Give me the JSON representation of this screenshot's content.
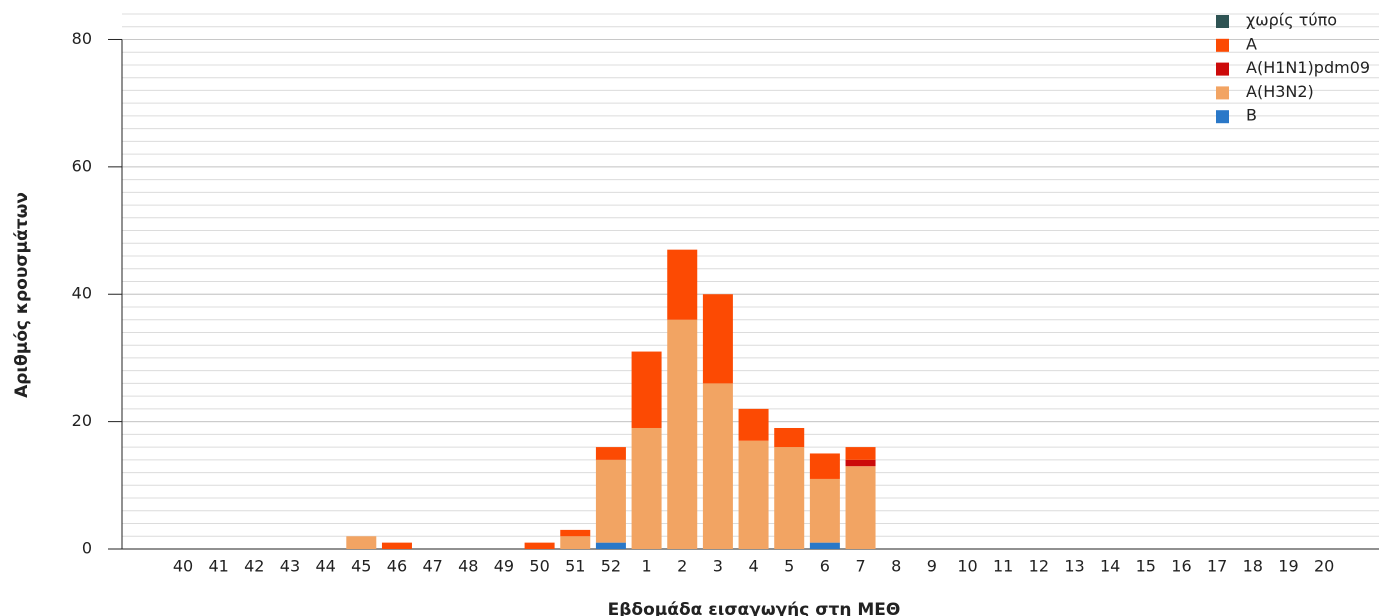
{
  "chart_data": {
    "type": "stacked_bar",
    "x_label": "Εβδομάδα εισαγωγής στη ΜΕΘ",
    "y_label": "Αριθμός κρουσμάτων",
    "categories": [
      "40",
      "41",
      "42",
      "43",
      "44",
      "45",
      "46",
      "47",
      "48",
      "49",
      "50",
      "51",
      "52",
      "1",
      "2",
      "3",
      "4",
      "5",
      "6",
      "7",
      "8",
      "9",
      "10",
      "11",
      "12",
      "13",
      "14",
      "15",
      "16",
      "17",
      "18",
      "19",
      "20"
    ],
    "series": [
      {
        "name": "χωρίς τύπο",
        "color": "#2e5353",
        "values": [
          0,
          0,
          0,
          0,
          0,
          0,
          0,
          0,
          0,
          0,
          0,
          0,
          0,
          0,
          0,
          0,
          0,
          0,
          0,
          0,
          0,
          0,
          0,
          0,
          0,
          0,
          0,
          0,
          0,
          0,
          0,
          0,
          0
        ]
      },
      {
        "name": "A",
        "color": "#fc4a03",
        "values": [
          0,
          0,
          0,
          0,
          0,
          0,
          1,
          0,
          0,
          0,
          1,
          1,
          2,
          12,
          11,
          14,
          5,
          3,
          4,
          2,
          0,
          0,
          0,
          0,
          0,
          0,
          0,
          0,
          0,
          0,
          0,
          0,
          0
        ]
      },
      {
        "name": "A(H1N1)pdm09",
        "color": "#cc0a0a",
        "values": [
          0,
          0,
          0,
          0,
          0,
          0,
          0,
          0,
          0,
          0,
          0,
          0,
          0,
          0,
          0,
          0,
          0,
          0,
          0,
          1,
          0,
          0,
          0,
          0,
          0,
          0,
          0,
          0,
          0,
          0,
          0,
          0,
          0
        ]
      },
      {
        "name": "A(H3N2)",
        "color": "#f2a463",
        "values": [
          0,
          0,
          0,
          0,
          0,
          2,
          0,
          0,
          0,
          0,
          0,
          2,
          13,
          19,
          36,
          26,
          17,
          16,
          10,
          13,
          0,
          0,
          0,
          0,
          0,
          0,
          0,
          0,
          0,
          0,
          0,
          0,
          0
        ]
      },
      {
        "name": "B",
        "color": "#2a78c8",
        "values": [
          0,
          0,
          0,
          0,
          0,
          0,
          0,
          0,
          0,
          0,
          0,
          0,
          1,
          0,
          0,
          0,
          0,
          0,
          1,
          0,
          0,
          0,
          0,
          0,
          0,
          0,
          0,
          0,
          0,
          0,
          0,
          0,
          0
        ]
      }
    ],
    "ylim": [
      0,
      84
    ],
    "yticks": [
      0,
      20,
      40,
      60,
      80
    ],
    "grid": true,
    "minor_grid_step": 2,
    "legend": "top-right"
  }
}
